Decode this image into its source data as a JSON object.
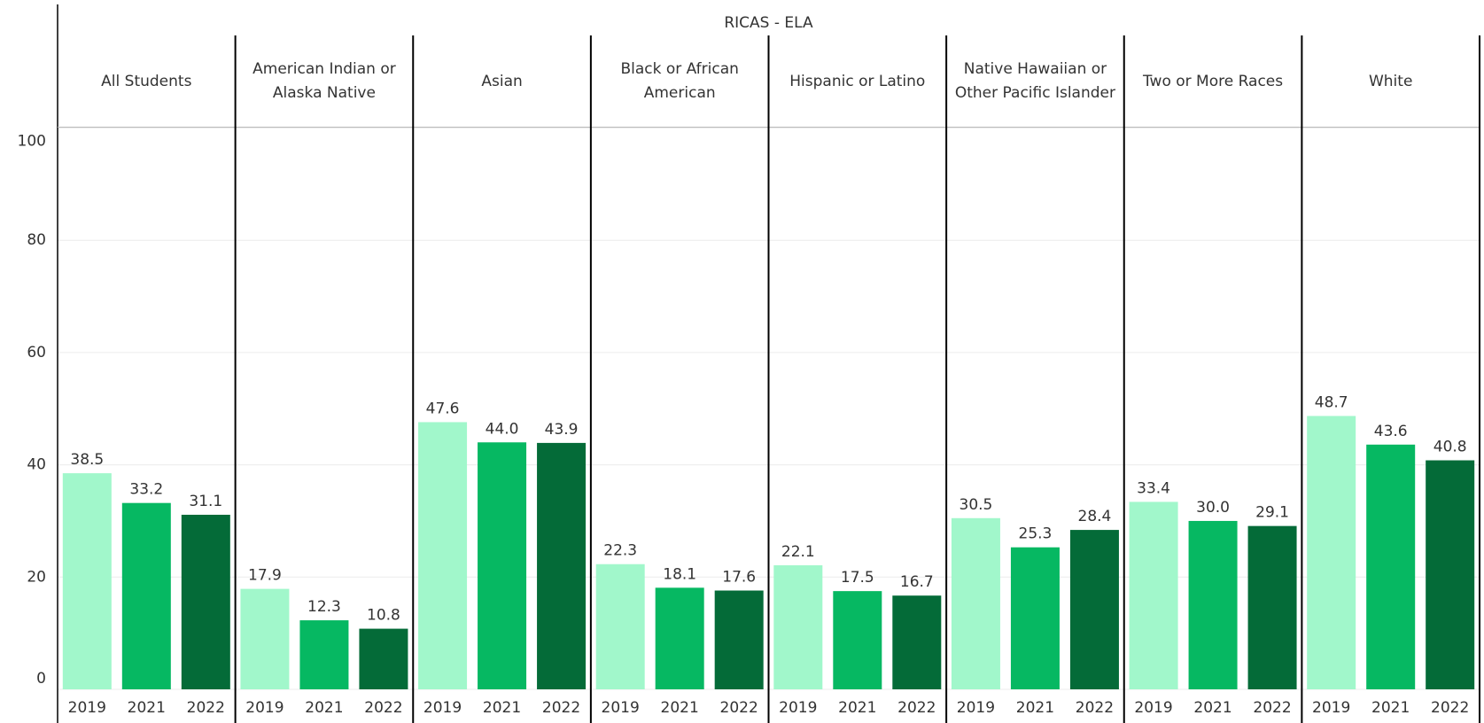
{
  "chart_data": {
    "type": "bar",
    "title": "RICAS - ELA",
    "categories": [
      "All Students",
      "American Indian or Alaska Native",
      "Asian",
      "Black or African American",
      "Hispanic or Latino",
      "Native Hawaiian or Other Pacific Islander",
      "Two or More Races",
      "White"
    ],
    "series": [
      {
        "name": "2019",
        "color": "#a1f7cb",
        "values": [
          38.5,
          17.9,
          47.6,
          22.3,
          22.1,
          30.5,
          33.4,
          48.7
        ],
        "value_labels": [
          "38.5",
          "17.9",
          "47.6",
          "22.3",
          "22.1",
          "30.5",
          "33.4",
          "48.7"
        ]
      },
      {
        "name": "2021",
        "color": "#06b862",
        "values": [
          33.2,
          12.3,
          44.0,
          18.1,
          17.5,
          25.3,
          30.0,
          43.6
        ],
        "value_labels": [
          "33.2",
          "12.3",
          "44.0",
          "18.1",
          "17.5",
          "25.3",
          "30.0",
          "43.6"
        ]
      },
      {
        "name": "2022",
        "color": "#046b38",
        "values": [
          31.1,
          10.8,
          43.9,
          17.6,
          16.7,
          28.4,
          29.1,
          40.8
        ],
        "value_labels": [
          "31.1",
          "10.8",
          "43.9",
          "17.6",
          "16.7",
          "28.4",
          "29.1",
          "40.8"
        ]
      }
    ],
    "ylim": [
      0,
      100
    ],
    "yticks": [
      0,
      20,
      40,
      60,
      80,
      100
    ],
    "grid": true
  }
}
